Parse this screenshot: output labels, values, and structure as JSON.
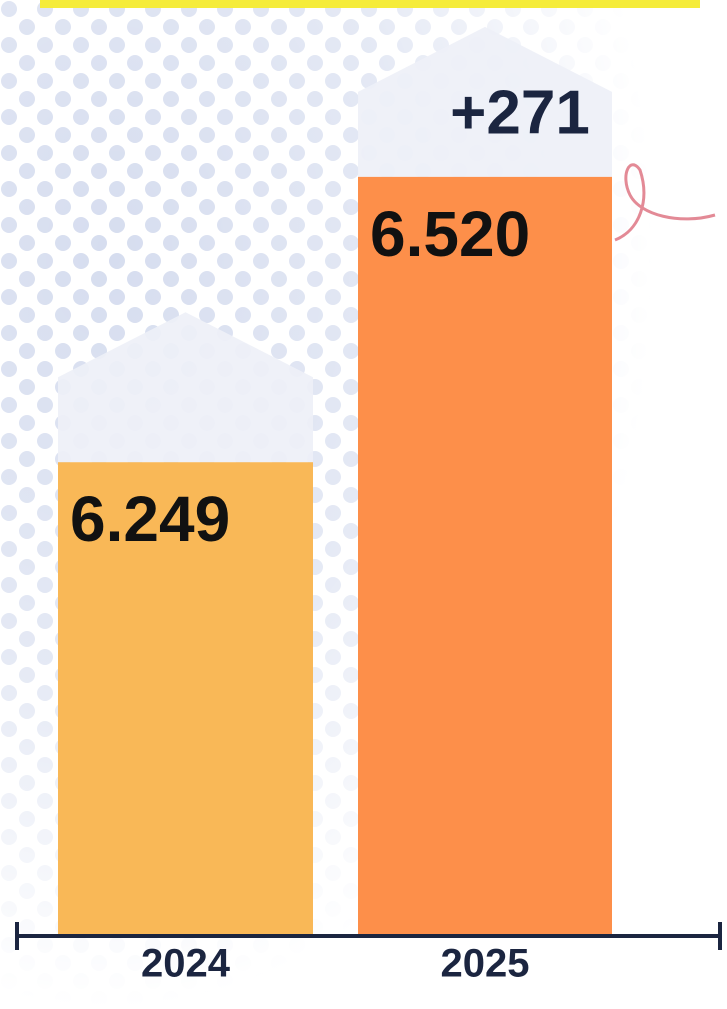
{
  "chart_data": {
    "type": "bar",
    "categories": [
      "2024",
      "2025"
    ],
    "values": [
      6249,
      6520
    ],
    "value_labels": [
      "6.249",
      "6.520"
    ],
    "colors": [
      "#f9b857",
      "#fd8f4a"
    ],
    "annotation": "+271",
    "ylim": [
      5800,
      6650
    ]
  }
}
